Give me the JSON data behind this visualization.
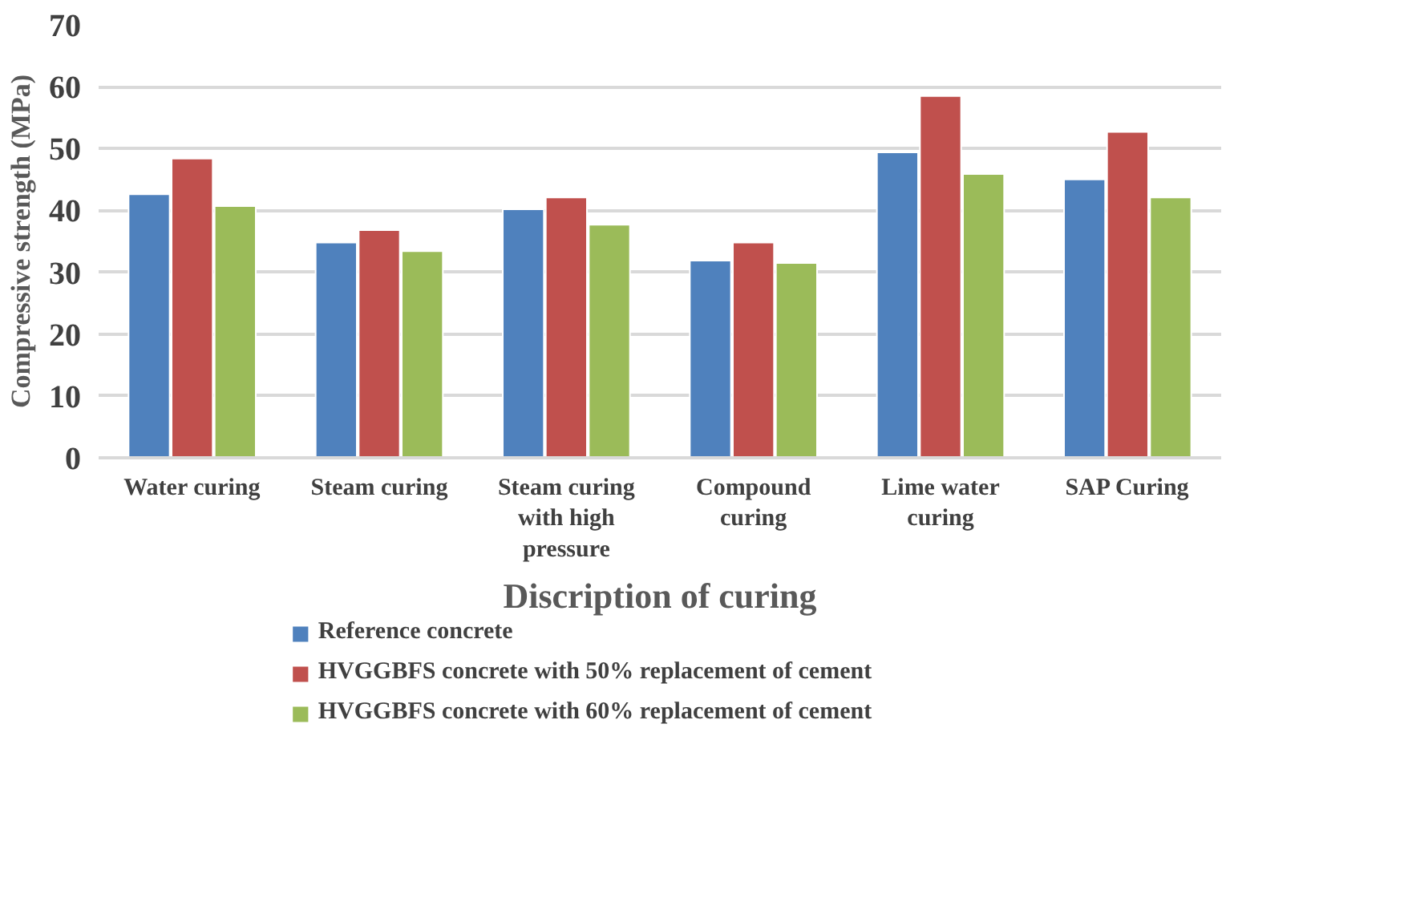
{
  "chart_data": {
    "type": "bar",
    "xlabel": "Discription of curing",
    "ylabel": "Compressive strength (MPa)",
    "categories": [
      "Water curing",
      "Steam curing",
      "Steam curing with high pressure",
      "Compound curing",
      "Lime water curing",
      "SAP Curing"
    ],
    "series": [
      {
        "name": "Reference concrete",
        "color": "#4f81bd",
        "values": [
          42.6,
          34.8,
          40.2,
          31.9,
          49.4,
          45.0
        ]
      },
      {
        "name": "HVGGBFS concrete with 50% replacement of cement",
        "color": "#c0504d",
        "values": [
          48.4,
          36.8,
          42.1,
          34.8,
          58.5,
          52.7
        ]
      },
      {
        "name": "HVGGBFS concrete with 60% replacement of cement",
        "color": "#9bbb59",
        "values": [
          40.7,
          33.4,
          37.7,
          31.5,
          45.9,
          42.1
        ]
      }
    ],
    "ylim": [
      0,
      70
    ],
    "yticks": [
      0,
      10,
      20,
      30,
      40,
      50,
      60,
      70
    ],
    "grid": "y",
    "legend": "bottom"
  }
}
